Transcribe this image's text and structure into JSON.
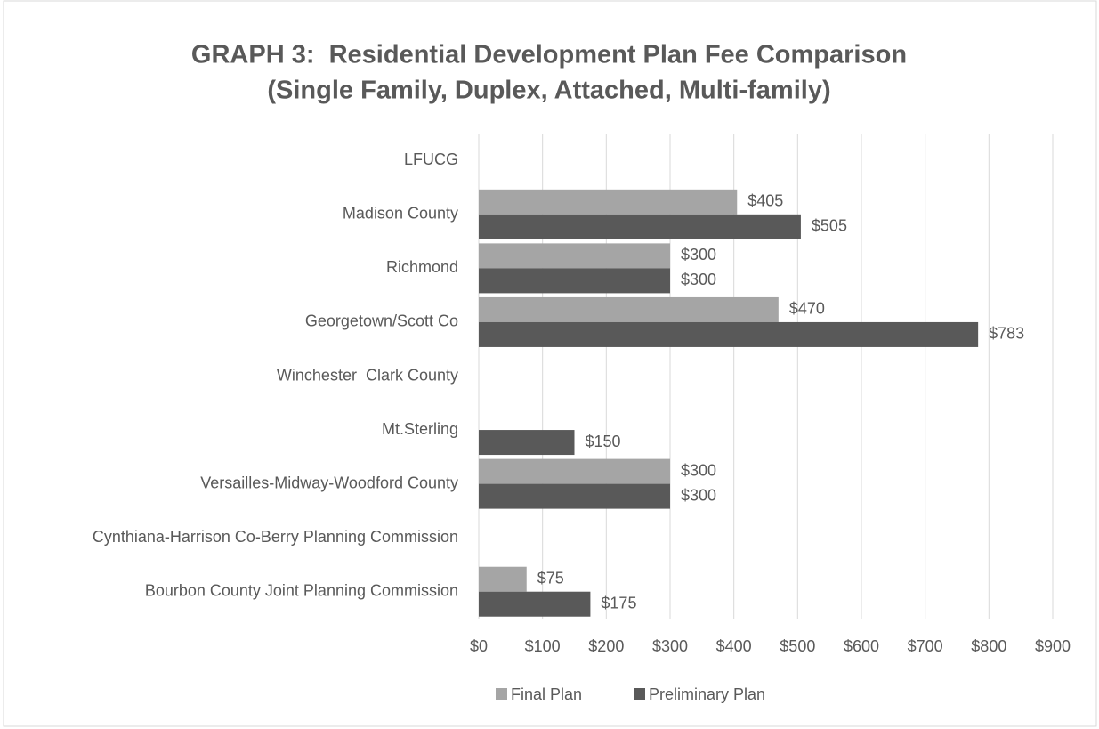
{
  "chart_data": {
    "type": "hbar",
    "title": [
      "GRAPH 3:  Residential Development Plan Fee Comparison",
      "(Single Family, Duplex, Attached, Multi-family)"
    ],
    "categories": [
      "LFUCG",
      "Madison County",
      "Richmond",
      "Georgetown/Scott Co",
      "Winchester  Clark County",
      "Mt.Sterling",
      "Versailles-Midway-Woodford County",
      "Cynthiana-Harrison Co-Berry Planning Commission",
      "Bourbon County Joint Planning Commission"
    ],
    "series": [
      {
        "name": "Final Plan",
        "color": "#a5a5a5",
        "values": [
          null,
          405,
          300,
          470,
          null,
          null,
          300,
          null,
          75
        ],
        "value_labels": [
          null,
          "$405",
          "$300",
          "$470",
          null,
          null,
          "$300",
          null,
          "$75"
        ]
      },
      {
        "name": "Preliminary Plan",
        "color": "#595959",
        "values": [
          null,
          505,
          300,
          783,
          null,
          150,
          300,
          null,
          175
        ],
        "value_labels": [
          null,
          "$505",
          "$300",
          "$783",
          null,
          "$150",
          "$300",
          null,
          "$175"
        ]
      }
    ],
    "xlim": [
      0,
      900
    ],
    "xticks": [
      {
        "value": 0,
        "label": "$0"
      },
      {
        "value": 100,
        "label": "$100"
      },
      {
        "value": 200,
        "label": "$200"
      },
      {
        "value": 300,
        "label": "$300"
      },
      {
        "value": 400,
        "label": "$400"
      },
      {
        "value": 500,
        "label": "$500"
      },
      {
        "value": 600,
        "label": "$600"
      },
      {
        "value": 700,
        "label": "$700"
      },
      {
        "value": 800,
        "label": "$800"
      },
      {
        "value": 900,
        "label": "$900"
      }
    ],
    "grid": true,
    "legend": "bottom"
  }
}
